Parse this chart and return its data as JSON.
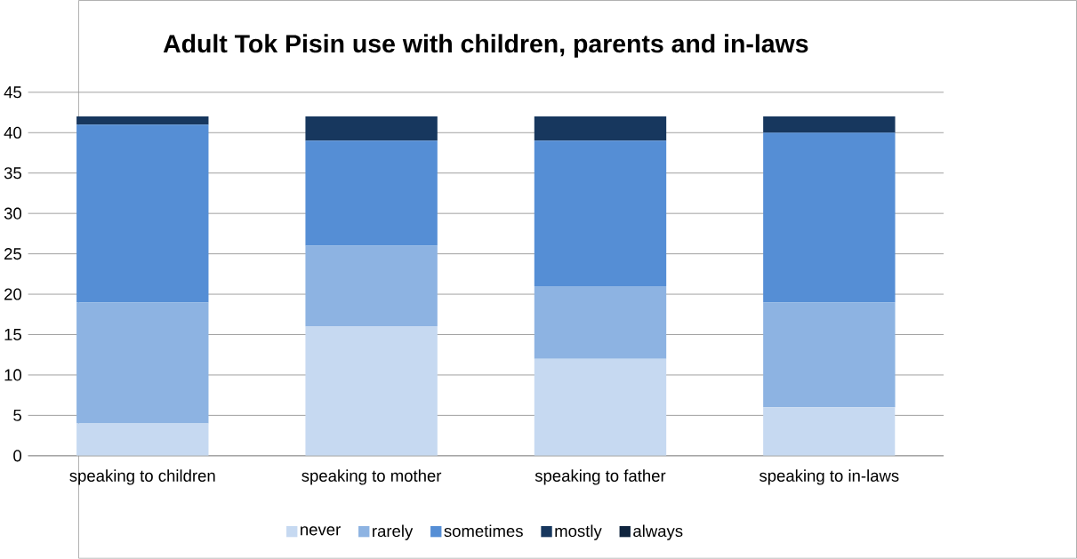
{
  "chart_data": {
    "type": "bar",
    "title": "Adult Tok Pisin use with children, parents and in-laws",
    "categories": [
      "speaking to children",
      "speaking to mother",
      "speaking to father",
      "speaking to in-laws"
    ],
    "stacked": true,
    "ylim": [
      0,
      45
    ],
    "yticks": [
      0,
      5,
      10,
      15,
      20,
      25,
      30,
      35,
      40,
      45
    ],
    "grid": "y",
    "legend": "bottom",
    "series": [
      {
        "name": "never",
        "color": "#c6d9f1",
        "values": [
          4,
          16,
          12,
          6
        ]
      },
      {
        "name": "rarely",
        "color": "#8db3e2",
        "values": [
          15,
          10,
          9,
          13
        ]
      },
      {
        "name": "sometimes",
        "color": "#558ed5",
        "values": [
          22,
          13,
          18,
          21
        ]
      },
      {
        "name": "mostly",
        "color": "#17375e",
        "values": [
          1,
          3,
          3,
          2
        ]
      },
      {
        "name": "always",
        "color": "#0f243e",
        "values": [
          0,
          0,
          0,
          0
        ]
      }
    ]
  }
}
